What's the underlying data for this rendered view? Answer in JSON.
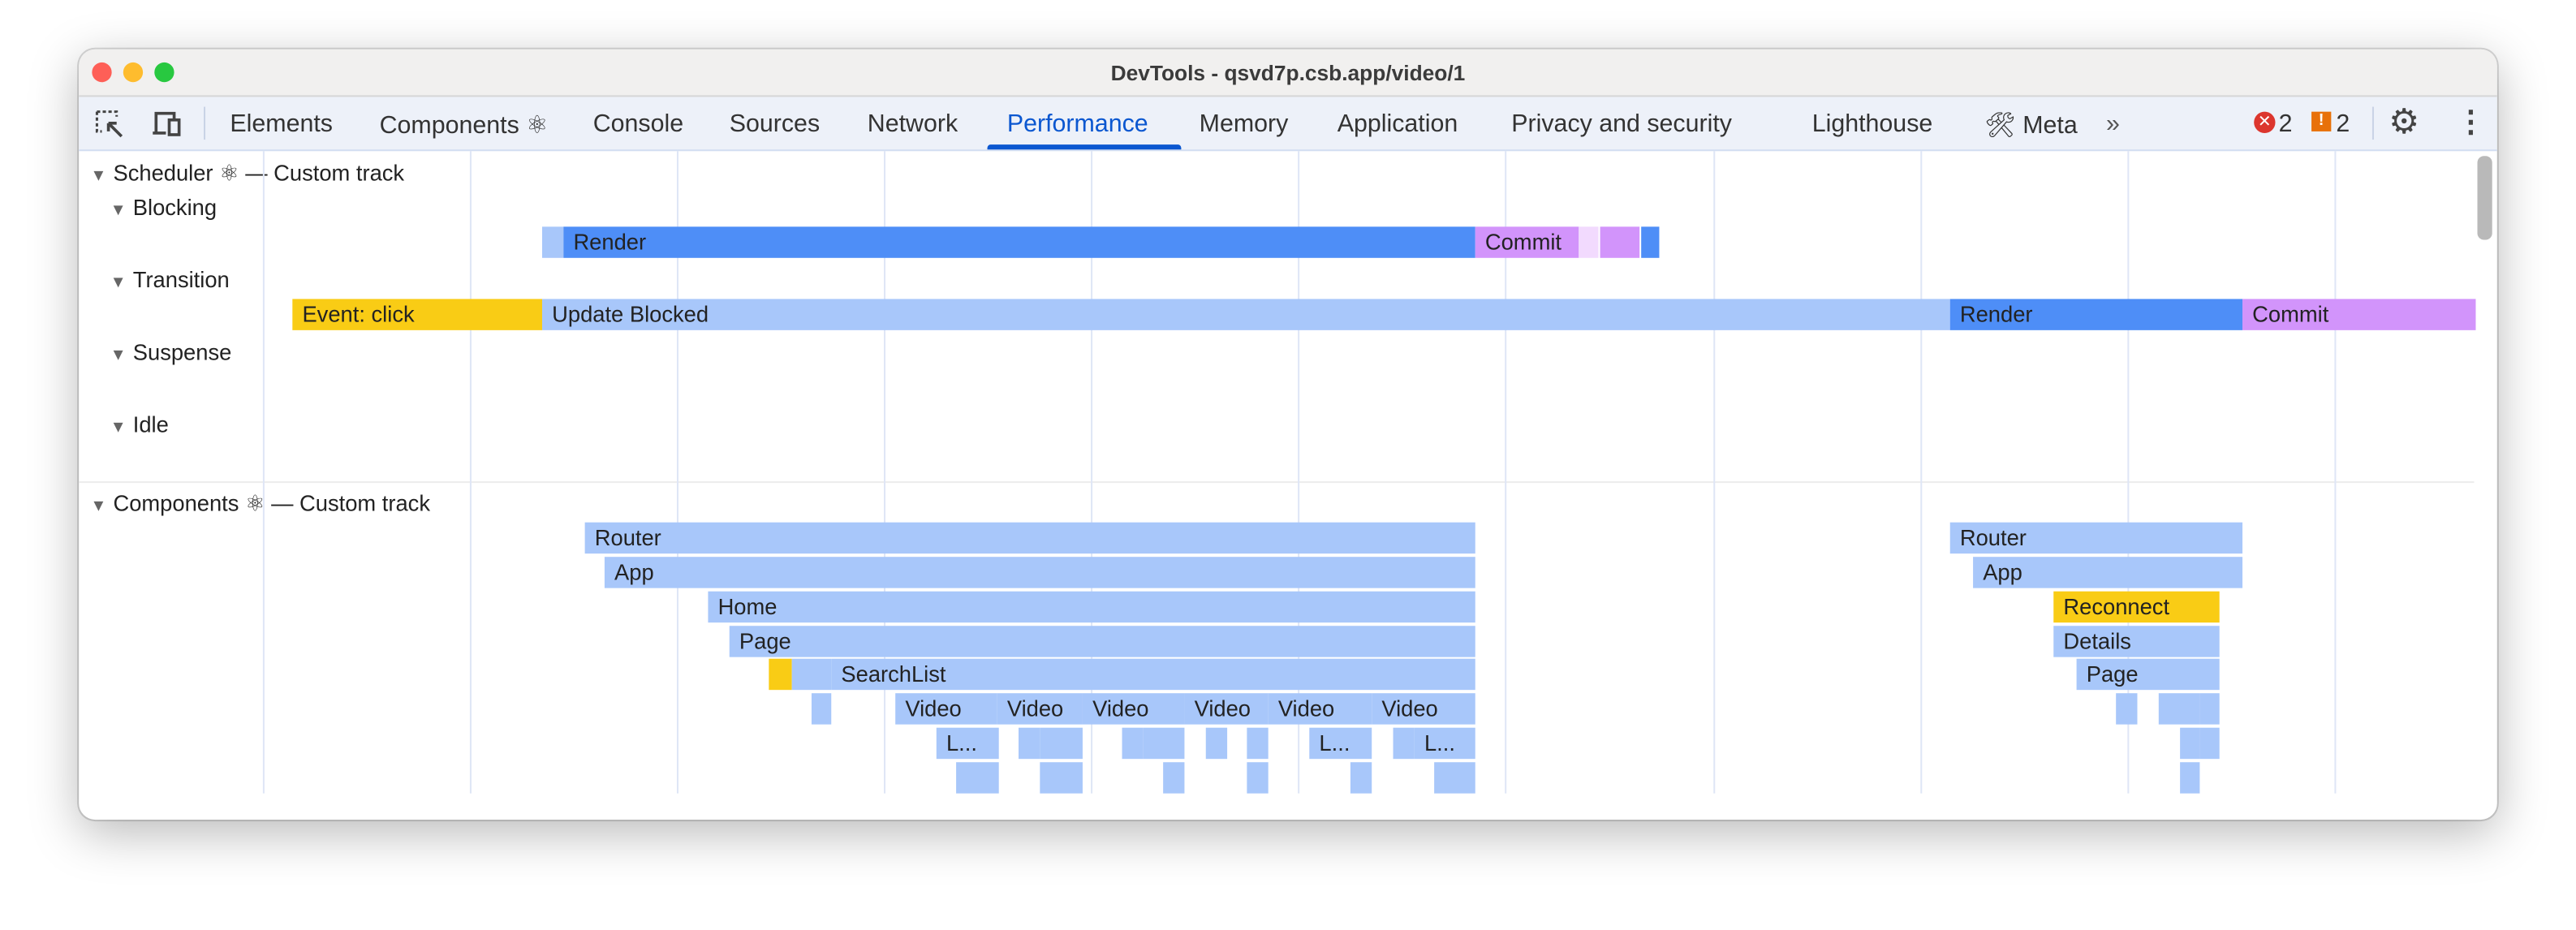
{
  "window": {
    "title": "DevTools - qsvd7p.csb.app/video/1"
  },
  "toolbar": {
    "tabs": [
      {
        "label": "Elements"
      },
      {
        "label": "Components ⚛"
      },
      {
        "label": "Console"
      },
      {
        "label": "Sources"
      },
      {
        "label": "Network"
      },
      {
        "label": "Performance",
        "active": true
      },
      {
        "label": "Memory"
      },
      {
        "label": "Application"
      },
      {
        "label": "Privacy and security"
      },
      {
        "label": "Lighthouse"
      },
      {
        "label": "Meta"
      }
    ],
    "more_label": "»",
    "errors_count": "2",
    "warnings_count": "2",
    "accent": "#0b57d0"
  },
  "scheduler": {
    "title": "Scheduler ⚛ — Custom track",
    "lanes": [
      "Blocking",
      "Transition",
      "Suspense",
      "Idle"
    ],
    "blocking_bars": {
      "render": "Render",
      "commit": "Commit"
    },
    "transition_bars": {
      "event": "Event: click",
      "blocked": "Update Blocked",
      "render": "Render",
      "commit": "Commit"
    }
  },
  "components": {
    "title": "Components ⚛ — Custom track",
    "left": {
      "router": "Router",
      "app": "App",
      "home": "Home",
      "page": "Page",
      "searchlist": "SearchList",
      "video": "Video",
      "l": "L..."
    },
    "right": {
      "router": "Router",
      "app": "App",
      "reconnect": "Reconnect",
      "details": "Details",
      "page": "Page"
    }
  },
  "colors": {
    "render": "#4e8ef7",
    "commit": "#d294fb",
    "component": "#a8c7fa",
    "event": "#f9cc15"
  }
}
